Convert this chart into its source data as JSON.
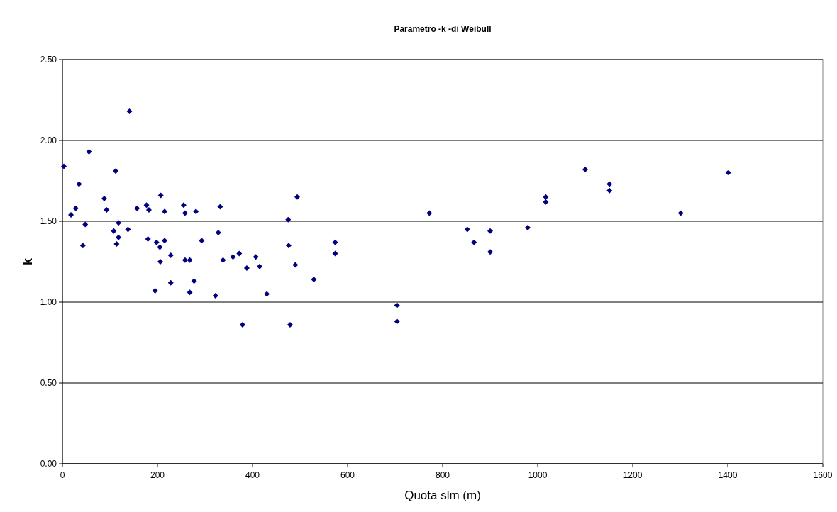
{
  "chart_data": {
    "type": "scatter",
    "title": "Parametro -k -di Weibull",
    "xlabel": "Quota slm (m)",
    "ylabel": "k",
    "x": [
      141,
      56,
      3,
      112,
      35,
      88,
      207,
      28,
      18,
      93,
      157,
      177,
      182,
      215,
      255,
      258,
      281,
      48,
      43,
      118,
      108,
      118,
      114,
      138,
      180,
      198,
      205,
      215,
      293,
      228,
      206,
      258,
      268,
      228,
      277,
      195,
      268,
      332,
      494,
      475,
      328,
      476,
      574,
      574,
      338,
      359,
      372,
      407,
      388,
      415,
      490,
      529,
      322,
      430,
      704,
      379,
      479,
      704,
      772,
      852,
      866,
      900,
      900,
      979,
      1017,
      1017,
      1100,
      1151,
      1151,
      1301,
      1401
    ],
    "series": [
      {
        "color": "#000080",
        "values": [
          2.18,
          1.93,
          1.84,
          1.81,
          1.73,
          1.64,
          1.66,
          1.58,
          1.54,
          1.57,
          1.58,
          1.6,
          1.57,
          1.56,
          1.6,
          1.55,
          1.56,
          1.48,
          1.35,
          1.49,
          1.44,
          1.4,
          1.36,
          1.45,
          1.39,
          1.37,
          1.34,
          1.38,
          1.38,
          1.29,
          1.25,
          1.26,
          1.26,
          1.12,
          1.13,
          1.07,
          1.06,
          1.59,
          1.65,
          1.51,
          1.43,
          1.35,
          1.37,
          1.3,
          1.26,
          1.28,
          1.3,
          1.28,
          1.21,
          1.22,
          1.23,
          1.14,
          1.04,
          1.05,
          0.98,
          0.86,
          0.86,
          0.88,
          1.55,
          1.45,
          1.37,
          1.44,
          1.31,
          1.46,
          1.65,
          1.62,
          1.82,
          1.73,
          1.69,
          1.55,
          1.8
        ]
      }
    ],
    "xlim": [
      0,
      1600
    ],
    "xticks": [
      0,
      200,
      400,
      600,
      800,
      1000,
      1200,
      1400,
      1600
    ],
    "ylim": [
      0,
      2.5
    ],
    "yticks": [
      {
        "value": 0,
        "label": "0.00"
      },
      {
        "value": 0.5,
        "label": "0.50"
      },
      {
        "value": 1,
        "label": "1.00"
      },
      {
        "value": 1.5,
        "label": "1.50"
      },
      {
        "value": 2,
        "label": "2.00"
      },
      {
        "value": 2.5,
        "label": "2.50"
      }
    ],
    "grid": "y",
    "marker": "diamond"
  }
}
